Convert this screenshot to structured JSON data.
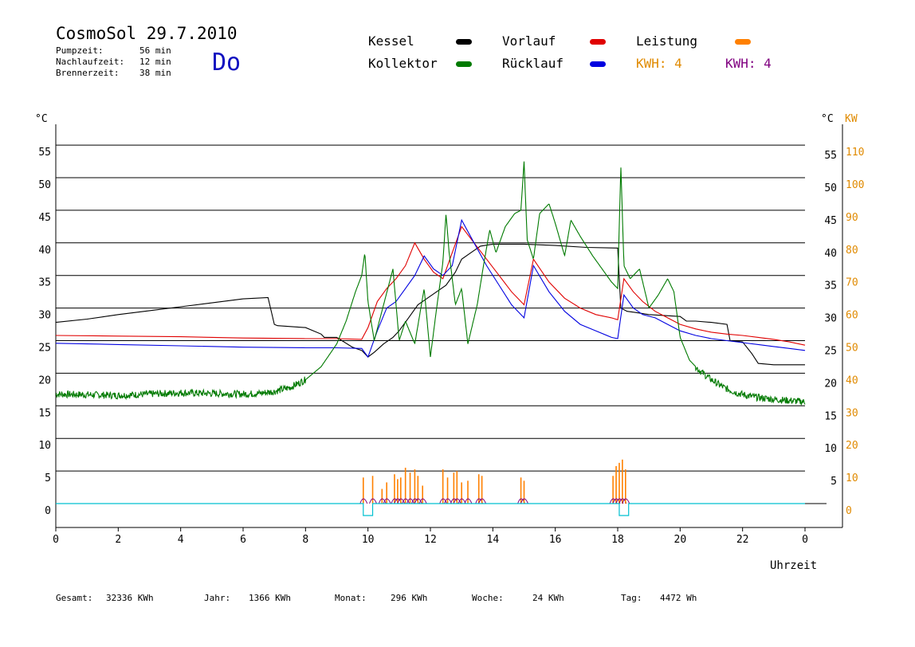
{
  "header": {
    "title": "CosmoSol 29.7.2010",
    "day": "Do",
    "stats": [
      {
        "label": "Pumpzeit:",
        "value": "56 min"
      },
      {
        "label": "Nachlaufzeit:",
        "value": "12 min"
      },
      {
        "label": "Brennerzeit:",
        "value": "38 min"
      }
    ]
  },
  "legend": {
    "kessel": {
      "label": "Kessel",
      "color": "#000000"
    },
    "kollektor": {
      "label": "Kollektor",
      "color": "#007a00"
    },
    "vorlauf": {
      "label": "Vorlauf",
      "color": "#e00000"
    },
    "ruecklauf": {
      "label": "Rücklauf",
      "color": "#0000e0"
    },
    "leistung": {
      "label": "Leistung",
      "color": "#ff8000"
    },
    "kwh_orange": {
      "label": "KWH: 4",
      "color": "#e08a00"
    },
    "kwh_purple": {
      "label": "KWH: 4",
      "color": "#800080"
    }
  },
  "footer": [
    {
      "label": "Gesamt:",
      "value": "32336 KWh"
    },
    {
      "label": "Jahr:",
      "value": "1366 KWh"
    },
    {
      "label": "Monat:",
      "value": "296 KWh"
    },
    {
      "label": "Woche:",
      "value": "24 KWh"
    },
    {
      "label": "Tag:",
      "value": "4472 Wh"
    }
  ],
  "chart_data": {
    "type": "line",
    "xlabel": "Uhrzeit",
    "ylabel_left": "°C",
    "ylabel_right_temp": "°C",
    "ylabel_right_power": "KW",
    "xlim": [
      0,
      24
    ],
    "ylim": [
      0,
      55
    ],
    "y2lim": [
      0,
      110
    ],
    "grid": true,
    "x_ticks": [
      "0",
      "2",
      "4",
      "6",
      "8",
      "10",
      "12",
      "14",
      "16",
      "18",
      "20",
      "22",
      "0"
    ],
    "y_ticks": [
      "0",
      "5",
      "10",
      "15",
      "20",
      "25",
      "30",
      "35",
      "40",
      "45",
      "50",
      "55"
    ],
    "y2_ticks": [
      "0",
      "10",
      "20",
      "30",
      "40",
      "50",
      "60",
      "70",
      "80",
      "90",
      "100",
      "110"
    ],
    "y_right_ticks": [
      "5",
      "10",
      "15",
      "20",
      "25",
      "30",
      "35",
      "40",
      "45",
      "50",
      "55"
    ],
    "series": [
      {
        "name": "Kessel",
        "color": "#000000",
        "x": [
          0,
          1,
          2,
          3,
          4,
          5,
          6,
          6.8,
          7.0,
          7.1,
          8.0,
          8.5,
          8.6,
          9.0,
          9.5,
          9.8,
          10.0,
          10.2,
          10.5,
          10.8,
          11.0,
          11.3,
          11.6,
          11.9,
          12.2,
          12.5,
          12.8,
          13.0,
          13.3,
          13.6,
          14.0,
          15.0,
          16.0,
          17.0,
          18.0,
          18.1,
          18.3,
          18.6,
          19.0,
          20.0,
          20.2,
          20.5,
          21.0,
          21.5,
          21.6,
          22.0,
          22.3,
          22.5,
          23.0,
          24.0
        ],
        "y": [
          27.8,
          28.3,
          29.0,
          29.6,
          30.2,
          30.8,
          31.4,
          31.6,
          27.5,
          27.3,
          27.0,
          26.0,
          25.5,
          25.5,
          24.0,
          23.5,
          22.5,
          23.2,
          24.5,
          25.5,
          26.5,
          28.5,
          30.5,
          31.5,
          32.5,
          33.5,
          35.5,
          37.5,
          38.5,
          39.5,
          39.8,
          39.8,
          39.6,
          39.3,
          39.2,
          30.0,
          29.5,
          29.3,
          29.0,
          28.7,
          28.0,
          28.0,
          27.8,
          27.5,
          25.0,
          24.8,
          23.0,
          21.5,
          21.3,
          21.3
        ]
      },
      {
        "name": "Vorlauf",
        "color": "#e00000",
        "x": [
          0,
          2,
          4,
          6,
          8,
          9,
          9.8,
          10.0,
          10.3,
          10.6,
          10.9,
          11.2,
          11.5,
          11.8,
          12.1,
          12.4,
          12.7,
          13.0,
          13.4,
          13.8,
          14.2,
          14.6,
          15.0,
          15.3,
          15.8,
          16.3,
          16.8,
          17.3,
          17.8,
          18.0,
          18.2,
          18.5,
          18.8,
          19.2,
          19.6,
          20.0,
          20.5,
          21.0,
          21.5,
          22.0,
          22.5,
          23.0,
          23.5,
          24.0
        ],
        "y": [
          25.8,
          25.7,
          25.6,
          25.4,
          25.3,
          25.3,
          25.2,
          27.0,
          31.0,
          33.0,
          34.5,
          36.5,
          40.0,
          37.5,
          35.5,
          34.5,
          38.5,
          42.5,
          40.0,
          37.5,
          35.0,
          32.5,
          30.5,
          37.5,
          34.0,
          31.5,
          30.0,
          29.0,
          28.5,
          28.2,
          34.5,
          32.5,
          31.0,
          29.5,
          28.5,
          27.5,
          26.8,
          26.3,
          26.0,
          25.8,
          25.5,
          25.2,
          24.8,
          24.3
        ]
      },
      {
        "name": "Rücklauf",
        "color": "#0000e0",
        "x": [
          0,
          2,
          4,
          6,
          8,
          9,
          9.8,
          10.0,
          10.3,
          10.6,
          10.9,
          11.2,
          11.5,
          11.8,
          12.1,
          12.4,
          12.7,
          13.0,
          13.4,
          13.8,
          14.2,
          14.6,
          15.0,
          15.3,
          15.8,
          16.3,
          16.8,
          17.3,
          17.8,
          18.0,
          18.2,
          18.5,
          18.8,
          19.2,
          19.6,
          20.0,
          20.5,
          21.0,
          21.5,
          22.0,
          22.5,
          23.0,
          23.5,
          24.0
        ],
        "y": [
          24.6,
          24.4,
          24.2,
          24.0,
          23.9,
          23.9,
          23.8,
          22.5,
          26.5,
          30.0,
          31.0,
          33.0,
          35.0,
          38.0,
          36.0,
          35.0,
          36.5,
          43.5,
          40.0,
          36.5,
          33.5,
          30.5,
          28.5,
          36.5,
          32.5,
          29.5,
          27.5,
          26.5,
          25.5,
          25.3,
          32.0,
          30.0,
          29.0,
          28.5,
          27.5,
          26.5,
          25.8,
          25.3,
          25.0,
          24.7,
          24.4,
          24.1,
          23.8,
          23.5
        ]
      },
      {
        "name": "Kollektor",
        "color": "#007a00",
        "noise": true,
        "x": [
          0,
          1,
          2,
          3,
          4,
          5,
          6,
          6.5,
          7.0,
          7.5,
          8.0,
          8.5,
          9.0,
          9.3,
          9.6,
          9.8,
          9.9,
          10.0,
          10.2,
          10.5,
          10.8,
          11.0,
          11.2,
          11.5,
          11.8,
          12.0,
          12.2,
          12.4,
          12.5,
          12.6,
          12.8,
          13.0,
          13.2,
          13.5,
          13.7,
          13.9,
          14.1,
          14.4,
          14.7,
          14.9,
          15.0,
          15.1,
          15.3,
          15.5,
          15.8,
          16.0,
          16.3,
          16.5,
          16.8,
          17.0,
          17.2,
          17.5,
          17.8,
          18.0,
          18.1,
          18.2,
          18.4,
          18.7,
          19.0,
          19.3,
          19.6,
          19.8,
          20.0,
          20.3,
          20.6,
          21.0,
          21.4,
          21.8,
          22.2,
          22.6,
          23.0,
          23.5,
          24.0
        ],
        "y": [
          16.8,
          16.7,
          16.6,
          16.8,
          17.0,
          16.9,
          16.8,
          16.9,
          17.2,
          17.8,
          19.0,
          21.0,
          24.5,
          28.0,
          32.5,
          35.0,
          38.5,
          31.0,
          25.0,
          30.5,
          36.0,
          25.0,
          28.0,
          24.5,
          33.0,
          22.5,
          30.0,
          37.0,
          44.5,
          38.5,
          30.5,
          33.0,
          24.5,
          30.5,
          36.5,
          42.0,
          38.5,
          42.5,
          44.5,
          45.0,
          52.5,
          40.5,
          37.5,
          44.5,
          46.0,
          43.0,
          38.0,
          43.5,
          41.0,
          39.5,
          38.0,
          36.0,
          34.0,
          33.0,
          52.0,
          36.5,
          34.5,
          36.0,
          30.0,
          32.0,
          34.5,
          32.5,
          25.5,
          22.0,
          20.5,
          19.0,
          17.8,
          17.0,
          16.5,
          16.2,
          16.0,
          15.8,
          15.6
        ]
      },
      {
        "name": "Leistung",
        "color": "#ff8000",
        "axis": "right",
        "spikes_x": [
          9.85,
          10.15,
          10.45,
          10.6,
          10.85,
          10.95,
          11.05,
          11.2,
          11.35,
          11.5,
          11.6,
          11.75,
          12.4,
          12.55,
          12.75,
          12.85,
          13.0,
          13.2,
          13.55,
          13.65,
          14.9,
          15.0,
          17.85,
          17.95,
          18.05,
          18.15,
          18.25
        ],
        "spikes_y": [
          8.0,
          8.5,
          4.5,
          6.5,
          9.0,
          7.5,
          8.0,
          11.0,
          9.5,
          10.5,
          8.5,
          5.5,
          10.5,
          8.0,
          9.5,
          10.0,
          6.5,
          7.0,
          9.0,
          8.5,
          8.0,
          7.0,
          8.5,
          11.5,
          12.5,
          13.5,
          10.5
        ]
      }
    ],
    "pump_state": {
      "color": "#00c0d0",
      "on_intervals": [
        [
          9.85,
          10.15
        ],
        [
          18.05,
          18.35
        ]
      ]
    }
  }
}
